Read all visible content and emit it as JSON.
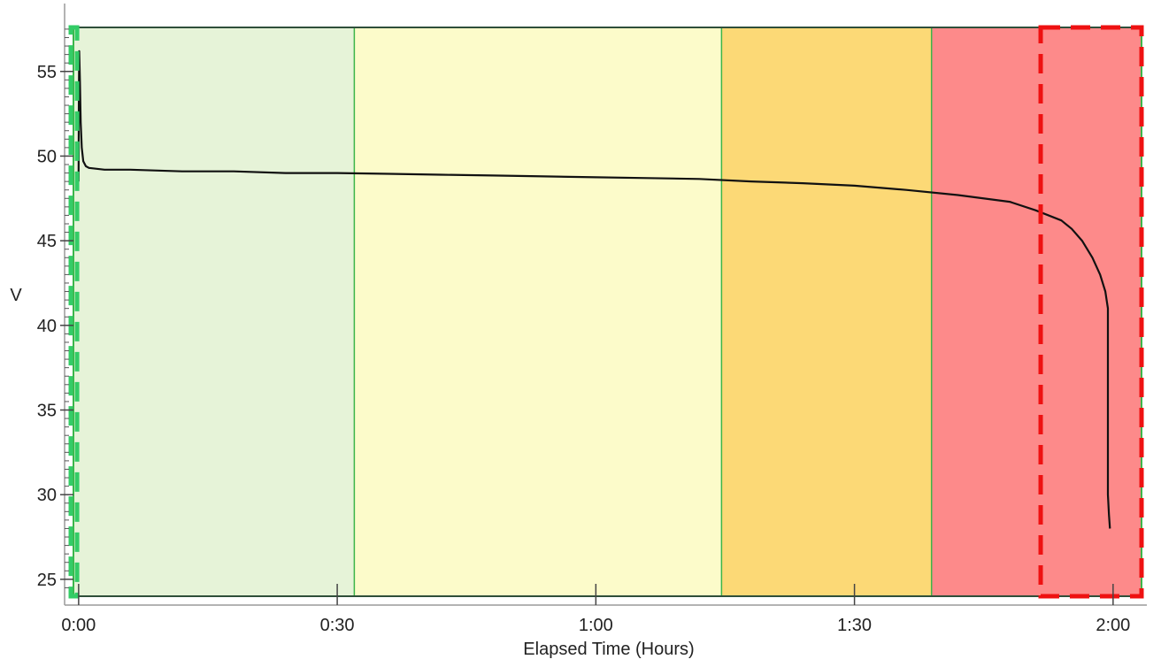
{
  "chart_data": {
    "type": "line",
    "title": "",
    "xlabel": "Elapsed Time (Hours)",
    "ylabel": "V",
    "xlim": [
      -0.01,
      2.055
    ],
    "ylim": [
      24.0,
      57.6
    ],
    "x_ticks": [
      {
        "value": 0.0,
        "label": "0:00"
      },
      {
        "value": 0.5,
        "label": "0:30"
      },
      {
        "value": 1.0,
        "label": "1:00"
      },
      {
        "value": 1.5,
        "label": "1:30"
      },
      {
        "value": 2.0,
        "label": "2:00"
      }
    ],
    "y_ticks": [
      25,
      30,
      35,
      40,
      45,
      50,
      55
    ],
    "regions": [
      {
        "x0": -0.01,
        "x1": 0.533,
        "color": "#e6f3d8"
      },
      {
        "x0": 0.533,
        "x1": 1.243,
        "color": "#fcfbca"
      },
      {
        "x0": 1.243,
        "x1": 1.649,
        "color": "#fcd976"
      },
      {
        "x0": 1.649,
        "x1": 2.055,
        "color": "#fd8a8a"
      }
    ],
    "highlights": [
      {
        "x0": -0.064,
        "x1": -0.003,
        "color": "#33cc66",
        "style": "dashed"
      },
      {
        "x0": 1.86,
        "x1": 2.055,
        "color": "#ee1111",
        "style": "dashed"
      }
    ],
    "series": [
      {
        "color": "#111111",
        "points": [
          [
            0.0,
            48.5
          ],
          [
            0.0005,
            53.5
          ],
          [
            0.0012,
            56.2
          ],
          [
            0.0025,
            54.5
          ],
          [
            0.004,
            52.0
          ],
          [
            0.006,
            50.5
          ],
          [
            0.009,
            49.7
          ],
          [
            0.014,
            49.4
          ],
          [
            0.02,
            49.3
          ],
          [
            0.05,
            49.2
          ],
          [
            0.1,
            49.2
          ],
          [
            0.2,
            49.1
          ],
          [
            0.3,
            49.1
          ],
          [
            0.4,
            49.0
          ],
          [
            0.5,
            49.0
          ],
          [
            0.6,
            48.95
          ],
          [
            0.7,
            48.9
          ],
          [
            0.8,
            48.85
          ],
          [
            0.9,
            48.8
          ],
          [
            1.0,
            48.75
          ],
          [
            1.1,
            48.7
          ],
          [
            1.2,
            48.65
          ],
          [
            1.3,
            48.5
          ],
          [
            1.4,
            48.4
          ],
          [
            1.5,
            48.25
          ],
          [
            1.6,
            48.0
          ],
          [
            1.7,
            47.7
          ],
          [
            1.8,
            47.3
          ],
          [
            1.85,
            46.8
          ],
          [
            1.9,
            46.2
          ],
          [
            1.92,
            45.7
          ],
          [
            1.94,
            45.0
          ],
          [
            1.96,
            44.0
          ],
          [
            1.975,
            43.0
          ],
          [
            1.985,
            42.0
          ],
          [
            1.99,
            41.0
          ],
          [
            1.99,
            35.0
          ],
          [
            1.99,
            30.0
          ],
          [
            1.992,
            28.8
          ],
          [
            1.994,
            28.0
          ]
        ]
      }
    ],
    "grid": false,
    "legend": "none"
  }
}
